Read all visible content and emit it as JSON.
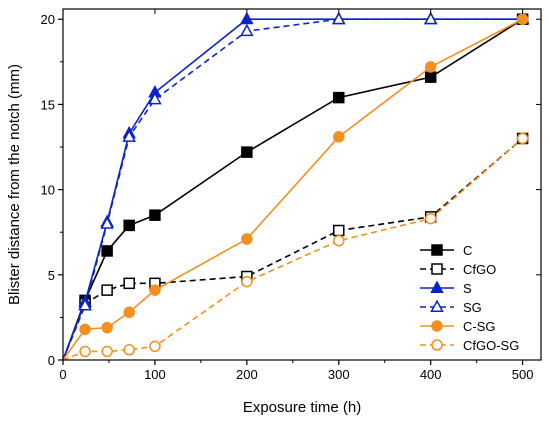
{
  "chart_data": {
    "type": "line",
    "title": "",
    "xlabel": "Exposure time (h)",
    "ylabel": "Blister distance from the notch (mm)",
    "xlim": [
      0,
      520
    ],
    "ylim": [
      0,
      20.6
    ],
    "xticks": [
      0,
      100,
      200,
      300,
      400,
      500
    ],
    "yticks": [
      0,
      5,
      10,
      15,
      20
    ],
    "grid": false,
    "legend_position": "bottom-right",
    "series": [
      {
        "name": "C",
        "color": "#000000",
        "line": "solid",
        "marker": "square",
        "filled": true,
        "x": [
          0,
          24,
          48,
          72,
          100,
          200,
          300,
          400,
          500
        ],
        "y": [
          0,
          3.5,
          6.4,
          7.9,
          8.5,
          12.2,
          15.4,
          16.6,
          20
        ]
      },
      {
        "name": "CfGO",
        "color": "#000000",
        "line": "dashed",
        "marker": "square",
        "filled": false,
        "x": [
          0,
          24,
          48,
          72,
          100,
          200,
          300,
          400,
          500
        ],
        "y": [
          0,
          3.3,
          4.1,
          4.5,
          4.5,
          4.9,
          7.6,
          8.4,
          13
        ]
      },
      {
        "name": "S",
        "color": "#0b24c8",
        "line": "solid",
        "marker": "triangle",
        "filled": true,
        "x": [
          0,
          24,
          48,
          72,
          100,
          200,
          300,
          400,
          500
        ],
        "y": [
          0,
          3.4,
          8.1,
          13.3,
          15.7,
          20,
          20,
          20,
          20
        ]
      },
      {
        "name": "SG",
        "color": "#0b24c8",
        "line": "dashed",
        "marker": "triangle",
        "filled": false,
        "x": [
          0,
          24,
          48,
          72,
          100,
          200,
          300,
          400,
          500
        ],
        "y": [
          0,
          3.2,
          8.0,
          13.1,
          15.3,
          19.3,
          20,
          20,
          20
        ]
      },
      {
        "name": "C-SG",
        "color": "#f39020",
        "line": "solid",
        "marker": "circle",
        "filled": true,
        "x": [
          0,
          24,
          48,
          72,
          100,
          200,
          300,
          400,
          500
        ],
        "y": [
          0,
          1.8,
          1.9,
          2.8,
          4.1,
          7.1,
          13.1,
          17.2,
          20
        ]
      },
      {
        "name": "CfGO-SG",
        "color": "#f39020",
        "line": "dashed",
        "marker": "circle",
        "filled": false,
        "x": [
          0,
          24,
          48,
          72,
          100,
          200,
          300,
          400,
          500
        ],
        "y": [
          0,
          0.5,
          0.5,
          0.6,
          0.8,
          4.6,
          7.0,
          8.3,
          13
        ]
      }
    ]
  }
}
